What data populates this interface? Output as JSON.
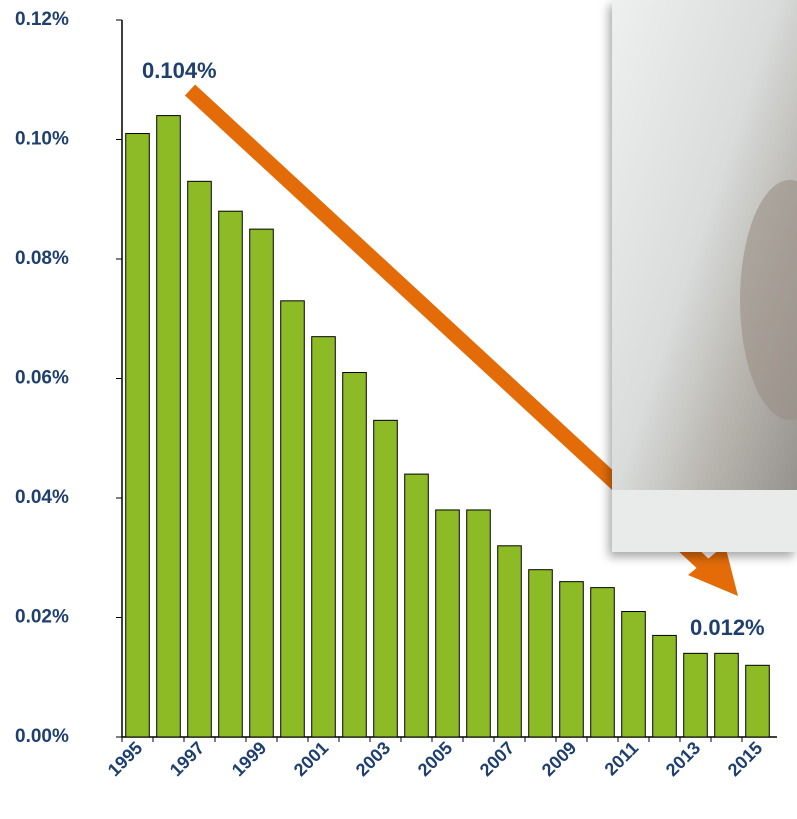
{
  "chart_data": {
    "type": "bar",
    "categories": [
      "1995",
      null,
      "1997",
      null,
      "1999",
      null,
      "2001",
      null,
      "2003",
      null,
      "2005",
      null,
      "2007",
      null,
      "2009",
      null,
      "2011",
      null,
      "2013",
      null,
      "2015"
    ],
    "values": [
      0.101,
      0.104,
      0.093,
      0.088,
      0.085,
      0.073,
      0.067,
      0.061,
      0.053,
      0.044,
      0.038,
      0.038,
      0.032,
      0.028,
      0.026,
      0.025,
      0.021,
      0.017,
      0.014,
      0.014,
      0.012
    ],
    "color": "#8cbb26",
    "ylim": [
      0,
      0.12
    ],
    "yticks": [
      {
        "value": 0,
        "label": "0.00%"
      },
      {
        "value": 0.02,
        "label": "0.02%"
      },
      {
        "value": 0.04,
        "label": "0.04%"
      },
      {
        "value": 0.06,
        "label": "0.06%"
      },
      {
        "value": 0.08,
        "label": "0.08%"
      },
      {
        "value": 0.1,
        "label": "0.10%"
      },
      {
        "value": 0.12,
        "label": "0.12%"
      }
    ],
    "annotations": [
      "0.104%",
      "0.012%"
    ]
  }
}
